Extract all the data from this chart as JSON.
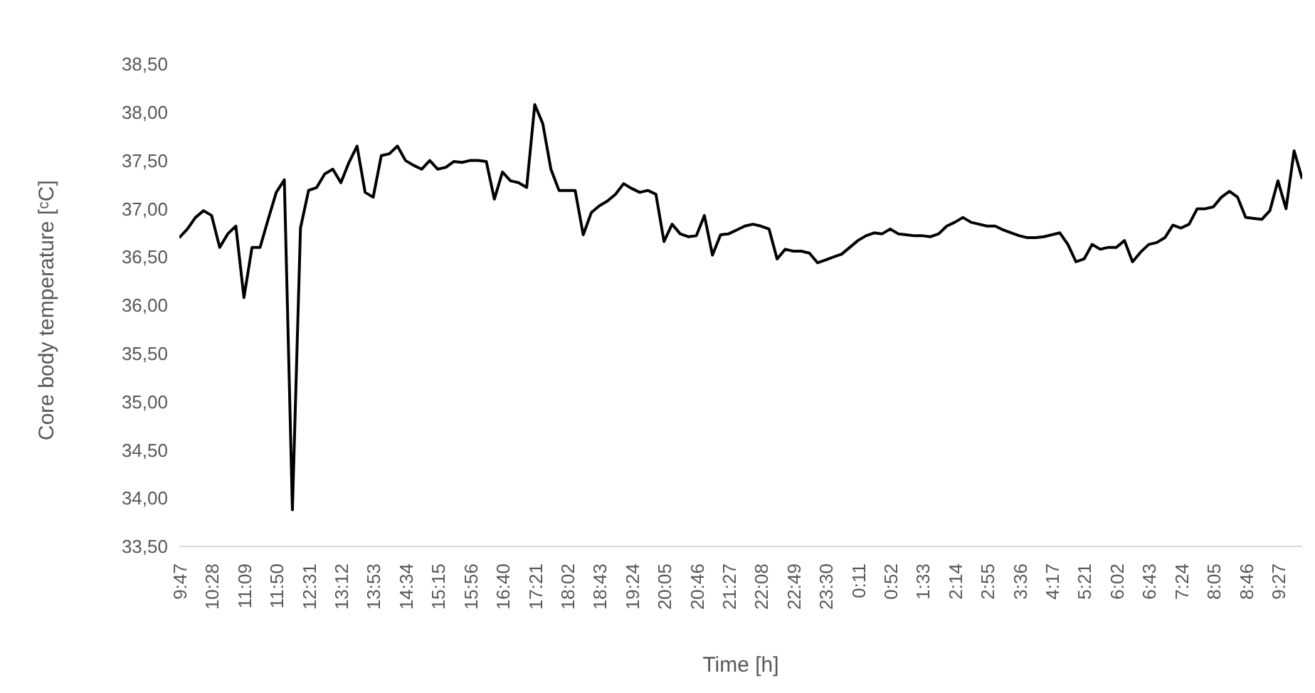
{
  "chart_data": {
    "type": "line",
    "xlabel": "Time [h]",
    "ylabel": "Core body temperature [ᶜC]",
    "categories": [
      "9:47",
      null,
      null,
      null,
      "10:28",
      null,
      null,
      null,
      "11:09",
      null,
      null,
      null,
      "11:50",
      null,
      null,
      null,
      "12:31",
      null,
      null,
      null,
      "13:12",
      null,
      null,
      null,
      "13:53",
      null,
      null,
      null,
      "14:34",
      null,
      null,
      null,
      "15:15",
      null,
      null,
      null,
      "15:56",
      null,
      null,
      null,
      "16:40",
      null,
      null,
      null,
      "17:21",
      null,
      null,
      null,
      "18:02",
      null,
      null,
      null,
      "18:43",
      null,
      null,
      null,
      "19:24",
      null,
      null,
      null,
      "20:05",
      null,
      null,
      null,
      "20:46",
      null,
      null,
      null,
      "21:27",
      null,
      null,
      null,
      "22:08",
      null,
      null,
      null,
      "22:49",
      null,
      null,
      null,
      "23:30",
      null,
      null,
      null,
      "0:11",
      null,
      null,
      null,
      "0:52",
      null,
      null,
      null,
      "1:33",
      null,
      null,
      null,
      "2:14",
      null,
      null,
      null,
      "2:55",
      null,
      null,
      null,
      "3:36",
      null,
      null,
      null,
      "4:17",
      null,
      null,
      null,
      "5:21",
      null,
      null,
      null,
      "6:02",
      null,
      null,
      null,
      "6:43",
      null,
      null,
      null,
      "7:24",
      null,
      null,
      null,
      "8:05",
      null,
      null,
      null,
      "8:46",
      null,
      null,
      null,
      "9:27",
      null,
      null,
      null
    ],
    "series": [
      {
        "color": "#000000",
        "values": [
          36.7,
          36.79,
          36.91,
          36.98,
          36.93,
          36.6,
          36.74,
          36.82,
          36.08,
          36.6,
          36.6,
          36.89,
          37.17,
          37.3,
          33.88,
          36.8,
          37.19,
          37.22,
          37.36,
          37.41,
          37.27,
          37.48,
          37.65,
          37.17,
          37.12,
          37.55,
          37.57,
          37.65,
          37.5,
          37.45,
          37.41,
          37.5,
          37.41,
          37.43,
          37.49,
          37.48,
          37.5,
          37.5,
          37.49,
          37.1,
          37.38,
          37.29,
          37.27,
          37.22,
          38.08,
          37.88,
          37.41,
          37.19,
          37.19,
          37.19,
          36.73,
          36.96,
          37.03,
          37.08,
          37.15,
          37.26,
          37.21,
          37.17,
          37.19,
          37.15,
          36.66,
          36.84,
          36.74,
          36.71,
          36.72,
          36.93,
          36.52,
          36.73,
          36.74,
          36.78,
          36.82,
          36.84,
          36.82,
          36.79,
          36.48,
          36.58,
          36.56,
          36.56,
          36.54,
          36.44,
          36.47,
          36.5,
          36.53,
          36.6,
          36.67,
          36.72,
          36.75,
          36.74,
          36.79,
          36.74,
          36.73,
          36.72,
          36.72,
          36.71,
          36.74,
          36.82,
          36.86,
          36.91,
          36.86,
          36.84,
          36.82,
          36.82,
          36.78,
          36.75,
          36.72,
          36.7,
          36.7,
          36.71,
          36.73,
          36.75,
          36.63,
          36.45,
          36.48,
          36.63,
          36.58,
          36.6,
          36.6,
          36.67,
          36.45,
          36.55,
          36.63,
          36.65,
          36.7,
          36.83,
          36.8,
          36.84,
          37.0,
          37.0,
          37.02,
          37.12,
          37.18,
          37.12,
          36.91,
          36.9,
          36.89,
          36.98,
          37.29,
          37.0,
          37.6,
          37.31
        ]
      }
    ],
    "ylim": [
      33.5,
      38.5
    ],
    "yticks": [
      {
        "value": 33.5,
        "label": "33,50"
      },
      {
        "value": 34,
        "label": "34,00"
      },
      {
        "value": 34.5,
        "label": "34,50"
      },
      {
        "value": 35,
        "label": "35,00"
      },
      {
        "value": 35.5,
        "label": "35,50"
      },
      {
        "value": 36,
        "label": "36,00"
      },
      {
        "value": 36.5,
        "label": "36,50"
      },
      {
        "value": 37,
        "label": "37,00"
      },
      {
        "value": 37.5,
        "label": "37,50"
      },
      {
        "value": 38,
        "label": "38,00"
      },
      {
        "value": 38.5,
        "label": "38,50"
      }
    ],
    "marker": "none",
    "line_style": "solid"
  }
}
